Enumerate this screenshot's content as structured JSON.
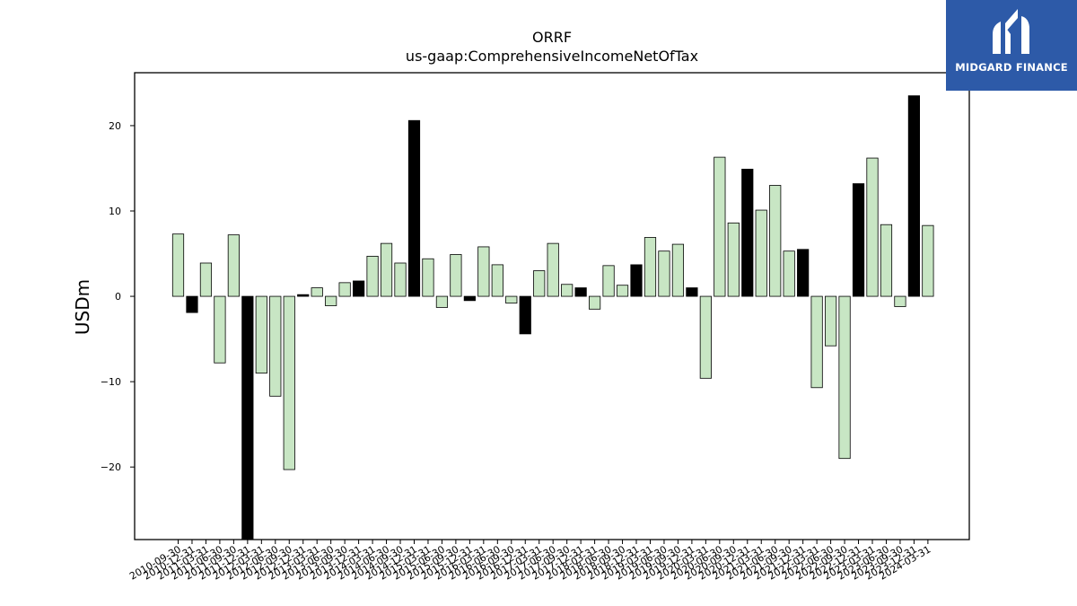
{
  "brand": {
    "name": "MIDGARD FINANCE",
    "bg_color": "#2d5aa8"
  },
  "chart_data": {
    "type": "bar",
    "title": "ORRF",
    "subtitle": "us-gaap:ComprehensiveIncomeNetOfTax",
    "xlabel": "",
    "ylabel": "USDm",
    "ylim": [
      -28.5,
      26.2
    ],
    "yticks": [
      -20,
      -10,
      0,
      10,
      20
    ],
    "colors": {
      "default": "#c8e6c4",
      "highlight": "#000000"
    },
    "categories": [
      "2010-09-30",
      "2010-12-31",
      "2011-03-31",
      "2011-06-30",
      "2011-09-30",
      "2011-12-31",
      "2012-03-31",
      "2012-06-30",
      "2012-09-30",
      "2012-12-31",
      "2013-03-31",
      "2013-06-30",
      "2013-09-30",
      "2013-12-31",
      "2014-03-31",
      "2014-06-30",
      "2014-09-30",
      "2014-12-31",
      "2015-03-31",
      "2015-06-30",
      "2015-09-30",
      "2015-12-31",
      "2016-03-31",
      "2016-06-30",
      "2016-09-30",
      "2016-12-31",
      "2017-03-31",
      "2017-06-30",
      "2017-09-30",
      "2017-12-31",
      "2018-03-31",
      "2018-06-30",
      "2018-09-30",
      "2018-12-31",
      "2019-03-31",
      "2019-06-30",
      "2019-09-30",
      "2019-12-31",
      "2020-03-31",
      "2020-06-30",
      "2020-09-30",
      "2020-12-31",
      "2021-03-31",
      "2021-06-30",
      "2021-09-30",
      "2021-12-31",
      "2022-03-31",
      "2022-06-30",
      "2022-09-30",
      "2022-12-31",
      "2023-03-31",
      "2023-06-30",
      "2023-09-30",
      "2023-12-31",
      "2024-03-31"
    ],
    "visible_tick_labels": [
      "2010-09-30",
      "2010-12-31",
      "2011-03-31",
      "2011-06-30",
      "2011-09-30",
      "2011-12-31",
      "2012-03-31",
      "2012-06-30",
      "2012-09-30",
      "2012-12-31",
      "2013-03-31",
      "2013-06-30",
      "2013-09-30",
      "2013-12-31",
      "2014-03-31",
      "2014-06-30",
      "2014-09-30",
      "2014-12-31",
      "2015-03-31",
      "2015-06-30",
      "2015-09-30",
      "2015-12-31",
      "2016-03-31",
      "2016-06-30",
      "2016-09-30",
      "2016-12-31",
      "2017-03-31",
      "2017-06-30",
      "2017-09-30",
      "2017-12-31",
      "2018-03-31",
      "2018-06-30",
      "2018-09-30",
      "2018-12-31",
      "2019-03-31",
      "2019-06-30",
      "2019-09-30",
      "2019-12-31",
      "2020-03-31",
      "2020-06-30",
      "2020-09-30",
      "2020-12-31",
      "2021-03-31",
      "2021-06-30",
      "2021-09-30",
      "2021-12-31",
      "2022-03-31",
      "2022-06-30",
      "2022-09-30",
      "2022-12-31",
      "2023-03-31",
      "2023-06-30",
      "2023-09-30",
      "2023-12-31",
      "2024-03-31"
    ],
    "values": [
      7.3,
      -1.9,
      3.9,
      -7.8,
      7.2,
      -28.5,
      -9.0,
      -11.7,
      -20.3,
      0.2,
      1.0,
      -1.1,
      1.6,
      1.8,
      4.7,
      6.2,
      3.9,
      20.6,
      4.4,
      -1.3,
      4.9,
      -0.5,
      5.8,
      3.7,
      -0.8,
      -4.4,
      3.0,
      6.2,
      1.4,
      1.0,
      -1.5,
      3.6,
      1.3,
      3.7,
      6.9,
      5.3,
      6.1,
      1.0,
      -9.6,
      16.3,
      8.6,
      14.9,
      10.1,
      13.0,
      5.3,
      5.5,
      -10.7,
      -5.8,
      -19.0,
      13.2,
      16.2,
      8.4,
      -1.2,
      23.5,
      8.3
    ],
    "highlight": [
      false,
      true,
      false,
      false,
      false,
      true,
      false,
      false,
      false,
      true,
      false,
      false,
      false,
      true,
      false,
      false,
      false,
      true,
      false,
      false,
      false,
      true,
      false,
      false,
      false,
      true,
      false,
      false,
      false,
      true,
      false,
      false,
      false,
      true,
      false,
      false,
      false,
      true,
      false,
      false,
      false,
      true,
      false,
      false,
      false,
      true,
      false,
      false,
      false,
      true,
      false,
      false,
      false,
      true,
      false
    ]
  }
}
